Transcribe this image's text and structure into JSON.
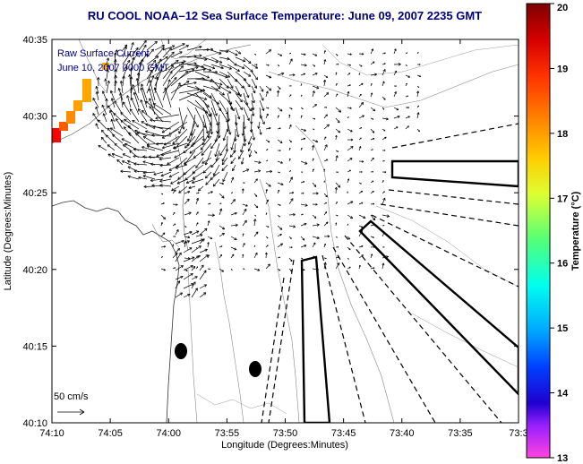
{
  "title": "RU COOL   NOAA–12  Sea Surface Temperature:  June 09, 2007 2235 GMT",
  "legend": {
    "line1": "Raw Surface Current",
    "line2": "June 10, 2007 0000 GMT"
  },
  "scale_label": "50 cm/s",
  "axes": {
    "xlabel": "Longitude (Degrees:Minutes)",
    "ylabel": "Latitude (Degrees:Minutes)",
    "xticks": [
      "74:10",
      "74:05",
      "74:00",
      "73:55",
      "73:50",
      "73:45",
      "73:40",
      "73:35",
      "73:3"
    ],
    "yticks": [
      "40:35",
      "40:30",
      "40:25",
      "40:20",
      "40:15",
      "40:10"
    ]
  },
  "colorbar": {
    "label": "Temperature (°C)",
    "ticks": [
      "20",
      "19",
      "18",
      "17",
      "16",
      "15",
      "14",
      "13"
    ],
    "min": 13,
    "max": 20
  },
  "colors": {
    "title": "#00007a",
    "land_hot": "#ff0000",
    "land_warm": "#ff8c00"
  }
}
